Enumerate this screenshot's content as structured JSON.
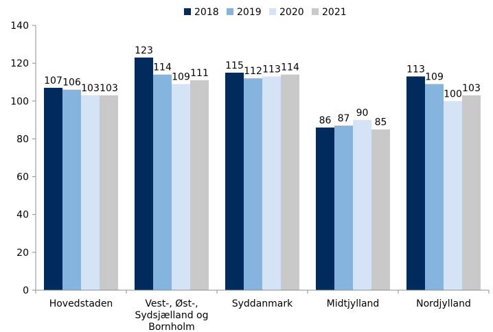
{
  "chart_data": {
    "type": "bar",
    "categories": [
      [
        "Hovedstaden"
      ],
      [
        "Vest-, Øst-,",
        "Sydsjælland og",
        "Bornholm"
      ],
      [
        "Syddanmark"
      ],
      [
        "Midtjylland"
      ],
      [
        "Nordjylland"
      ]
    ],
    "series": [
      {
        "name": "2018",
        "color": "#002b5c",
        "values": [
          107,
          123,
          115,
          86,
          113
        ],
        "labels": [
          "107",
          "123",
          "115",
          "86",
          "113"
        ]
      },
      {
        "name": "2019",
        "color": "#85b4de",
        "values": [
          106,
          114,
          112,
          87,
          109
        ],
        "labels": [
          "106",
          "114",
          "112",
          "87",
          "109"
        ]
      },
      {
        "name": "2020",
        "color": "#d4e3f5",
        "values": [
          103,
          109,
          113,
          90,
          100
        ],
        "labels": [
          "103",
          "109",
          "113",
          "90",
          "100"
        ]
      },
      {
        "name": "2021",
        "color": "#c9c9c9",
        "values": [
          103,
          111,
          114,
          85,
          103
        ],
        "labels": [
          "103",
          "111",
          "114",
          "85",
          "103"
        ]
      }
    ],
    "ylim": [
      0,
      140
    ],
    "yticks": [
      0,
      20,
      40,
      60,
      80,
      100,
      120,
      140
    ],
    "title": "",
    "xlabel": "",
    "ylabel": "",
    "legend_position": "top",
    "grid": false
  }
}
